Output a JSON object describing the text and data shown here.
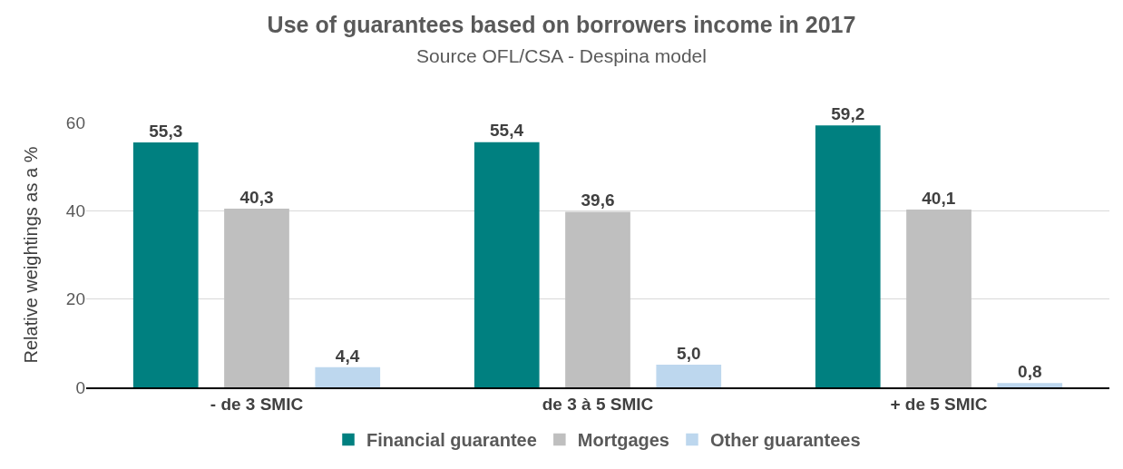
{
  "chart_data": {
    "type": "bar",
    "title": "Use of guarantees based on borrowers income in 2017",
    "subtitle": "Source OFL/CSA - Despina model",
    "ylabel": "Relative weightings as a %",
    "categories": [
      "- de 3 SMIC",
      "de 3 à 5 SMIC",
      "+ de 5 SMIC"
    ],
    "series": [
      {
        "name": "Financial guarantee",
        "color": "#008080",
        "values": [
          55.3,
          55.4,
          59.2
        ],
        "value_labels": [
          "55,3",
          "55,4",
          "59,2"
        ]
      },
      {
        "name": "Mortgages",
        "color": "#bfbfbf",
        "values": [
          40.3,
          39.6,
          40.1
        ],
        "value_labels": [
          "40,3",
          "39,6",
          "40,1"
        ]
      },
      {
        "name": "Other guarantees",
        "color": "#bdd7ee",
        "values": [
          4.4,
          5.0,
          0.8
        ],
        "value_labels": [
          "4,4",
          "5,0",
          "0,8"
        ]
      }
    ],
    "ylim": [
      0,
      60
    ],
    "yticks": [
      0,
      20,
      40,
      60
    ],
    "grid": "y",
    "legend": "bottom"
  }
}
